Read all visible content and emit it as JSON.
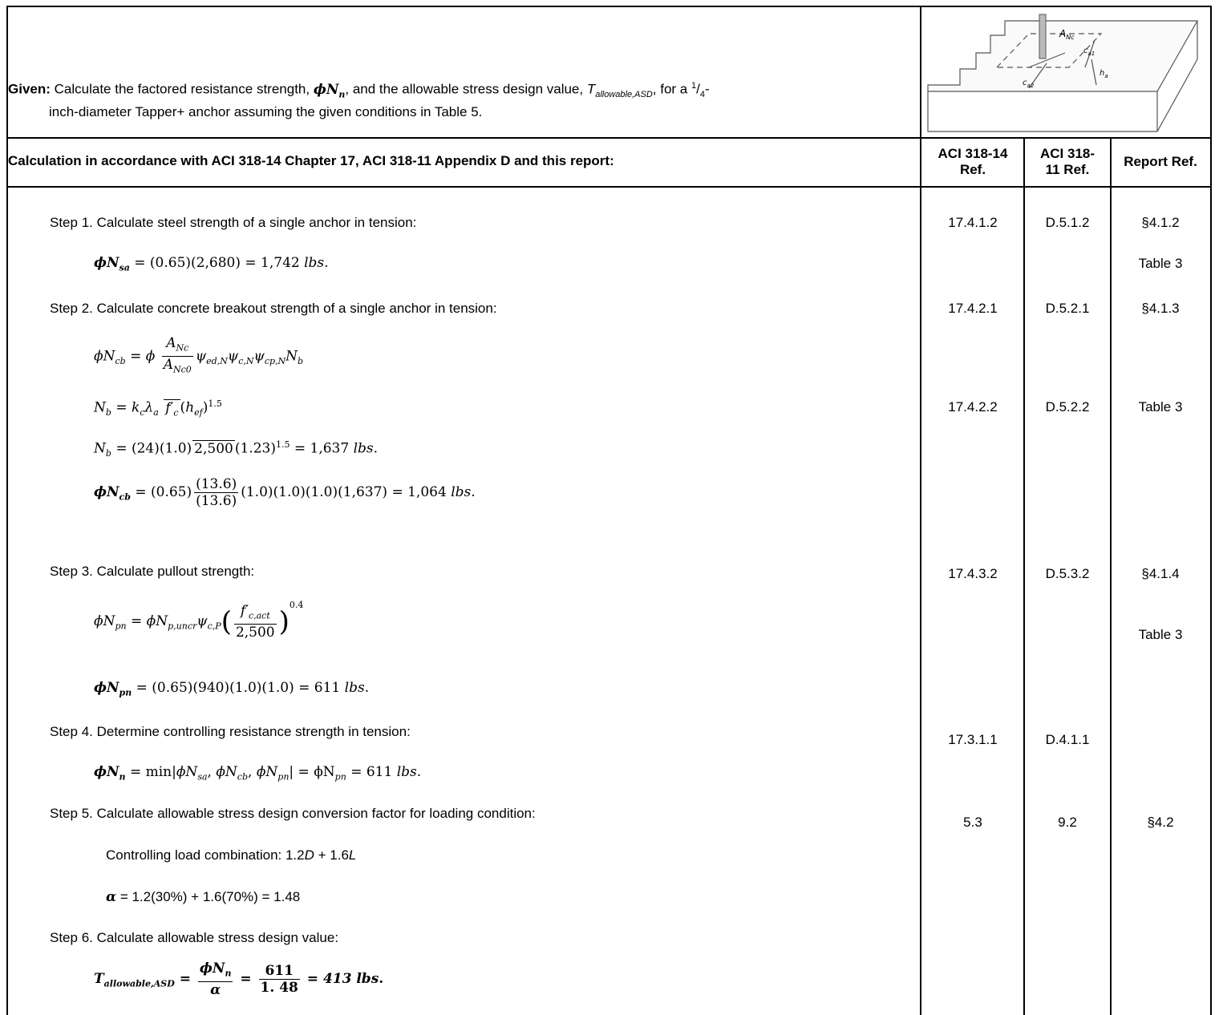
{
  "given": {
    "label": "Given:",
    "line1_a": "Calculate the factored resistance strength, ",
    "phiNn": "ϕN",
    "phiNn_sub": "n",
    "line1_b": ", and the allowable stress design value, ",
    "T": "T",
    "T_sub": "allowable,ASD",
    "line1_c": ", for a ",
    "frac_num": "1",
    "frac_den": "4",
    "line1_d": "-",
    "line2": "inch-diameter Tapper+ anchor assuming the given conditions in Table 5."
  },
  "diagram": {
    "label_anc": "A",
    "label_anc_sub": "Nc",
    "label_ca1": "c",
    "label_ca1_sub": "a1",
    "label_ca2": "c",
    "label_ca2_sub": "a2",
    "label_ha": "h",
    "label_ha_sub": "a"
  },
  "header": {
    "main": "Calculation in accordance with ACI 318-14 Chapter 17, ACI 318-11 Appendix D and this report:",
    "col1_l1": "ACI 318-14",
    "col1_l2": "Ref.",
    "col2_l1": "ACI 318-",
    "col2_l2": "11 Ref.",
    "col3": "Report Ref."
  },
  "steps": {
    "s1": "Step 1. Calculate steel strength of a single anchor in tension:",
    "s2": "Step 2. Calculate concrete breakout strength of a single anchor in tension:",
    "s3": "Step 3. Calculate pullout strength:",
    "s4": "Step 4. Determine controlling resistance strength in tension:",
    "s5": "Step 5. Calculate allowable stress design conversion factor for loading condition:",
    "s6": "Step 6. Calculate allowable stress design value:"
  },
  "equations": {
    "nsa_rhs": " = (0.65)(2,680) = 1,742 ",
    "unit": "lbs",
    "ncb_general_rhs": "ψ",
    "nb_1_lhs": "N",
    "nb_2_rhs_a": " = (24)(1.0)",
    "nb_2_sqrt": "2,500",
    "nb_2_rhs_b": "(1.23)",
    "nb_2_exp": "1.5",
    "nb_2_rhs_c": " =  1,637 ",
    "ncb_calc_a": " = (0.65)",
    "ncb_calc_num": "(13.6)",
    "ncb_calc_den": "(13.6)",
    "ncb_calc_b": "(1.0)(1.0)(1.0)(1,637) =  1,064 ",
    "npn_gen_den": "2,500",
    "npn_gen_exp": "0.4",
    "npn_calc": " = (0.65)(940)(1.0)(1.0) =  611 ",
    "nn_calc_mid": " = min",
    "nn_calc_end": " =  ϕN",
    "nn_val": " = 611 ",
    "load_combo_label": "Controlling load combination: 1.2",
    "load_D": "D",
    "load_plus": " + 1.6",
    "load_L": "L",
    "alpha_sym": "α",
    "alpha_rhs": " = 1.2(30%) + 1.6(70%) = 1.48",
    "t_num": "ϕN",
    "t_num2": "611",
    "t_den2": "1. 48",
    "t_result": " = 413 lbs"
  },
  "refs": {
    "r1_c1": "17.4.1.2",
    "r1_c2": "D.5.1.2",
    "r1_c3": "§4.1.2",
    "r1b_c3": "Table 3",
    "r2_c1": "17.4.2.1",
    "r2_c2": "D.5.2.1",
    "r2_c3": "§4.1.3",
    "r2b_c1": "17.4.2.2",
    "r2b_c2": "D.5.2.2",
    "r2b_c3": "Table 3",
    "r3_c1": "17.4.3.2",
    "r3_c2": "D.5.3.2",
    "r3_c3": "§4.1.4",
    "r3b_c3": "Table 3",
    "r4_c1": "17.3.1.1",
    "r4_c2": "D.4.1.1",
    "r5_c1": "5.3",
    "r5_c2": "9.2",
    "r5_c3": "§4.2"
  }
}
